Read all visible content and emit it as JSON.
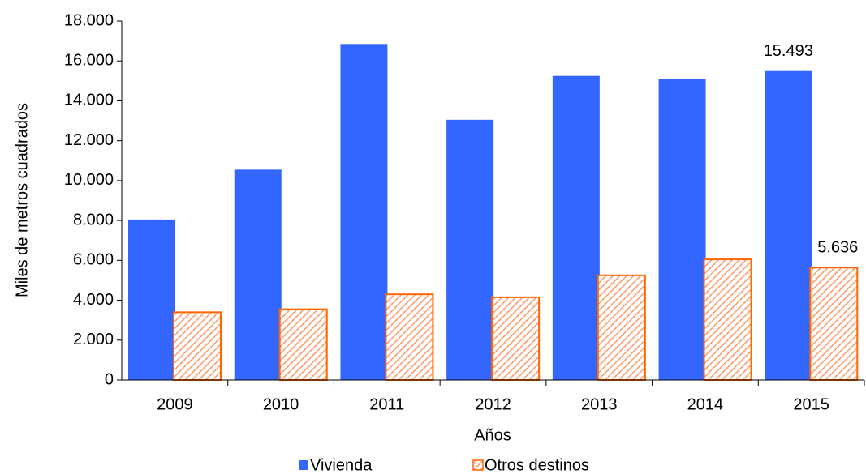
{
  "chart_data": {
    "type": "bar",
    "x_label": "Años",
    "y_label": "Miles de metros cuadrados",
    "categories": [
      "2009",
      "2010",
      "2011",
      "2012",
      "2013",
      "2014",
      "2015"
    ],
    "series": [
      {
        "name": "Vivienda",
        "color": "#3366ff",
        "pattern": "solid",
        "values": [
          8050,
          10550,
          16850,
          13050,
          15250,
          15100,
          15493
        ],
        "value_labels": [
          null,
          null,
          null,
          null,
          null,
          null,
          "15.493"
        ]
      },
      {
        "name": "Otros destinos",
        "color": "#ff6600",
        "pattern": "hatch",
        "values": [
          3400,
          3550,
          4300,
          4150,
          5250,
          6050,
          5636
        ],
        "value_labels": [
          null,
          null,
          null,
          null,
          null,
          null,
          "5.636"
        ]
      }
    ],
    "ylim": [
      0,
      18000
    ],
    "yticks": [
      0,
      {
        "value": 2000,
        "label": "2.000"
      },
      {
        "value": 4000,
        "label": "4.000"
      },
      {
        "value": 6000,
        "label": "6.000"
      },
      {
        "value": 8000,
        "label": "8.000"
      },
      {
        "value": 10000,
        "label": "10.000"
      },
      {
        "value": 12000,
        "label": "12.000"
      },
      {
        "value": 14000,
        "label": "14.000"
      },
      {
        "value": 16000,
        "label": "16.000"
      },
      {
        "value": 18000,
        "label": "18.000"
      }
    ],
    "legend": "bottom"
  }
}
